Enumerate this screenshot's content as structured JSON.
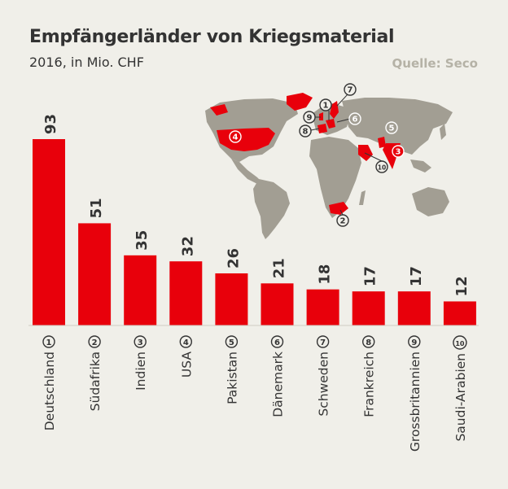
{
  "title": "Empfängerländer von Kriegsmaterial",
  "subtitle": "2016, in Mio. CHF",
  "source": "Quelle: Seco",
  "colors": {
    "bar": "#e8000b",
    "map_land": "#a29e93",
    "map_highlight": "#e8000b",
    "background": "#f0efe9",
    "text": "#333333"
  },
  "chart_data": {
    "type": "bar",
    "title": "Empfängerländer von Kriegsmaterial",
    "subtitle": "2016, in Mio. CHF",
    "unit": "Mio. CHF",
    "categories": [
      "Deutschland",
      "Südafrika",
      "Indien",
      "USA",
      "Pakistan",
      "Dänemark",
      "Schweden",
      "Frankreich",
      "Grossbritannien",
      "Saudi-Arabien"
    ],
    "ranks": [
      "1",
      "2",
      "3",
      "4",
      "5",
      "6",
      "7",
      "8",
      "9",
      "10"
    ],
    "values": [
      93,
      51,
      35,
      32,
      26,
      21,
      18,
      17,
      17,
      12
    ],
    "ylim": [
      0,
      93
    ],
    "legend": "none",
    "grid": false
  },
  "map": {
    "markers": [
      {
        "rank": "1",
        "highlighted": false
      },
      {
        "rank": "2",
        "highlighted": false
      },
      {
        "rank": "3",
        "highlighted": true
      },
      {
        "rank": "4",
        "highlighted": true
      },
      {
        "rank": "5",
        "highlighted": false
      },
      {
        "rank": "6",
        "highlighted": false
      },
      {
        "rank": "7",
        "highlighted": false
      },
      {
        "rank": "8",
        "highlighted": false
      },
      {
        "rank": "9",
        "highlighted": false
      },
      {
        "rank": "10",
        "highlighted": false
      }
    ]
  }
}
